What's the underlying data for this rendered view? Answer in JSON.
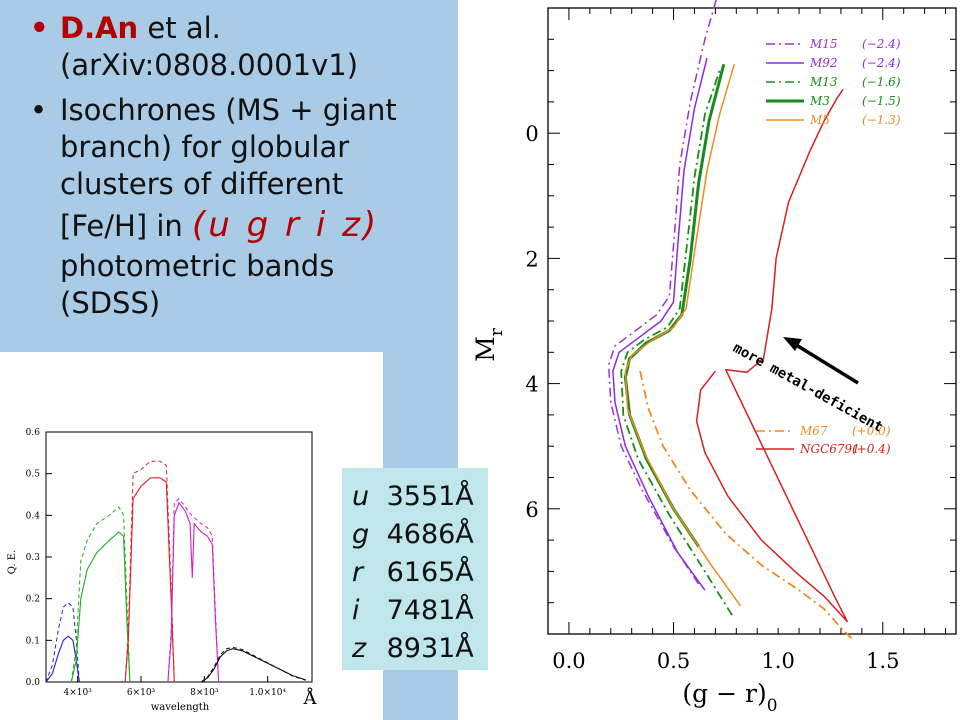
{
  "slide": {
    "bullet1_author": "D.An",
    "bullet1_rest": " et al.",
    "bullet1_ref": "(arXiv:0808.0001v1)",
    "bullet2_lines": [
      "Isochrones (MS + giant",
      "branch) for globular",
      "clusters of different"
    ],
    "bullet2_fe": "[Fe/H] in ",
    "bullet2_bands": "u g r i z",
    "bullet2_tail_lines": [
      "photometric bands",
      "(SDSS)"
    ],
    "bullet_glyph": "•"
  },
  "bands": [
    {
      "band": "u",
      "wavelength": "3551Å"
    },
    {
      "band": "g",
      "wavelength": "4686Å"
    },
    {
      "band": "r",
      "wavelength": "6165Å"
    },
    {
      "band": "i",
      "wavelength": "7481Å"
    },
    {
      "band": "z",
      "wavelength": "8931Å"
    }
  ],
  "chart_data": [
    {
      "type": "line",
      "xlabel": "(g − r)",
      "xlabel_sub": "0",
      "ylabel": "M",
      "ylabel_sub": "r",
      "xlim": [
        -0.1,
        1.85
      ],
      "ylim": [
        8.0,
        -2.0
      ],
      "x_ticks": [
        "0.0",
        "0.5",
        "1.0",
        "1.5"
      ],
      "y_ticks": [
        "0",
        "2",
        "4",
        "6"
      ],
      "annotation": "more metal-deficient",
      "legend_top": [
        {
          "name": "M15",
          "value": "(−2.4)",
          "color": "#9933cc",
          "dash": "dashdot"
        },
        {
          "name": "M92",
          "value": "(−2.4)",
          "color": "#8a2be2",
          "dash": "solid"
        },
        {
          "name": "M13",
          "value": "(−1.6)",
          "color": "#1a8a1a",
          "dash": "dashdot"
        },
        {
          "name": "M3",
          "value": "(−1.5)",
          "color": "#1a8a1a",
          "dash": "solid-thick"
        },
        {
          "name": "M5",
          "value": "(−1.3)",
          "color": "#f08a20",
          "dash": "solid"
        }
      ],
      "legend_bottom": [
        {
          "name": "M67",
          "value": "(+0.0)",
          "color": "#f08a20",
          "dash": "dashdot"
        },
        {
          "name": "NGC6791",
          "value": "(+0.4)",
          "color": "#d42020",
          "dash": "solid"
        }
      ],
      "series": [
        {
          "name": "M15",
          "color": "#9933cc",
          "dash": "dashdot",
          "width": 1.5,
          "points": [
            [
              0.62,
              7.2
            ],
            [
              0.5,
              6.6
            ],
            [
              0.35,
              5.7
            ],
            [
              0.25,
              5.0
            ],
            [
              0.2,
              4.3
            ],
            [
              0.19,
              3.7
            ],
            [
              0.22,
              3.4
            ],
            [
              0.3,
              3.2
            ],
            [
              0.42,
              2.9
            ],
            [
              0.48,
              2.6
            ],
            [
              0.5,
              1.8
            ],
            [
              0.53,
              0.5
            ],
            [
              0.58,
              -0.5
            ],
            [
              0.65,
              -1.5
            ],
            [
              0.71,
              -2.2
            ]
          ]
        },
        {
          "name": "M92",
          "color": "#8a2be2",
          "dash": "solid",
          "width": 1.5,
          "points": [
            [
              0.65,
              7.3
            ],
            [
              0.52,
              6.7
            ],
            [
              0.38,
              5.8
            ],
            [
              0.27,
              5.0
            ],
            [
              0.22,
              4.3
            ],
            [
              0.21,
              3.8
            ],
            [
              0.24,
              3.5
            ],
            [
              0.32,
              3.3
            ],
            [
              0.44,
              3.0
            ],
            [
              0.5,
              2.7
            ],
            [
              0.52,
              1.8
            ],
            [
              0.55,
              0.6
            ],
            [
              0.6,
              -0.4
            ],
            [
              0.66,
              -1.2
            ]
          ]
        },
        {
          "name": "M13",
          "color": "#1a8a1a",
          "dash": "dashdot",
          "width": 1.8,
          "points": [
            [
              0.78,
              7.7
            ],
            [
              0.65,
              7.0
            ],
            [
              0.48,
              6.1
            ],
            [
              0.33,
              5.2
            ],
            [
              0.26,
              4.5
            ],
            [
              0.25,
              3.8
            ],
            [
              0.28,
              3.5
            ],
            [
              0.36,
              3.3
            ],
            [
              0.47,
              3.1
            ],
            [
              0.53,
              2.8
            ],
            [
              0.56,
              1.9
            ],
            [
              0.6,
              0.7
            ],
            [
              0.65,
              -0.3
            ],
            [
              0.72,
              -1.0
            ]
          ]
        },
        {
          "name": "M3",
          "color": "#1a8a1a",
          "dash": "solid",
          "width": 3,
          "points": [
            [
              0.62,
              6.6
            ],
            [
              0.5,
              6.0
            ],
            [
              0.37,
              5.2
            ],
            [
              0.29,
              4.5
            ],
            [
              0.27,
              3.9
            ],
            [
              0.29,
              3.6
            ],
            [
              0.37,
              3.35
            ],
            [
              0.48,
              3.15
            ],
            [
              0.54,
              2.9
            ],
            [
              0.58,
              2.0
            ],
            [
              0.62,
              0.8
            ],
            [
              0.67,
              -0.2
            ],
            [
              0.74,
              -1.1
            ]
          ]
        },
        {
          "name": "M5",
          "color": "#f08a20",
          "dash": "solid",
          "width": 1.5,
          "points": [
            [
              0.82,
              7.55
            ],
            [
              0.68,
              6.9
            ],
            [
              0.5,
              6.0
            ],
            [
              0.36,
              5.1
            ],
            [
              0.28,
              4.4
            ],
            [
              0.27,
              3.8
            ],
            [
              0.3,
              3.55
            ],
            [
              0.4,
              3.3
            ],
            [
              0.5,
              3.1
            ],
            [
              0.56,
              2.8
            ],
            [
              0.6,
              1.9
            ],
            [
              0.66,
              0.6
            ],
            [
              0.72,
              -0.3
            ],
            [
              0.79,
              -1.1
            ]
          ]
        },
        {
          "name": "M67",
          "color": "#f08a20",
          "dash": "dashdot",
          "width": 1.8,
          "points": [
            [
              0.34,
              3.8
            ],
            [
              0.38,
              4.4
            ],
            [
              0.45,
              5.0
            ],
            [
              0.58,
              5.7
            ],
            [
              0.75,
              6.4
            ],
            [
              0.92,
              6.9
            ],
            [
              1.1,
              7.3
            ],
            [
              1.22,
              7.6
            ],
            [
              1.3,
              7.9
            ],
            [
              1.36,
              8.1
            ]
          ]
        },
        {
          "name": "NGC6791",
          "color": "#d42020",
          "dash": "solid",
          "width": 1.5,
          "points": [
            [
              0.7,
              3.8
            ],
            [
              0.63,
              4.1
            ],
            [
              0.61,
              4.6
            ],
            [
              0.65,
              5.1
            ],
            [
              0.76,
              5.8
            ],
            [
              0.92,
              6.5
            ],
            [
              1.08,
              7.0
            ],
            [
              1.22,
              7.4
            ],
            [
              1.33,
              7.8
            ],
            [
              1.27,
              7.4
            ],
            [
              0.75,
              3.78
            ],
            [
              0.85,
              3.82
            ],
            [
              0.93,
              3.6
            ],
            [
              0.97,
              2.8
            ],
            [
              0.99,
              2.0
            ],
            [
              1.05,
              1.1
            ],
            [
              1.15,
              0.3
            ],
            [
              1.22,
              -0.2
            ],
            [
              1.28,
              -0.55
            ],
            [
              1.31,
              -0.7
            ]
          ]
        }
      ]
    },
    {
      "type": "line",
      "xlabel": "wavelength",
      "ylabel": "Q. E.",
      "xlim": [
        3000,
        11400
      ],
      "ylim": [
        0,
        0.6
      ],
      "x_ticks": [
        "4×10³",
        "6×10³",
        "8×10³",
        "1.0×10⁴"
      ],
      "y_ticks": [
        "0.0",
        "0.1",
        "0.2",
        "0.3",
        "0.4",
        "0.5",
        "0.6"
      ],
      "corner_label": "Å",
      "series": [
        {
          "name": "u",
          "color": "#2222cc",
          "solid": [
            [
              3000,
              0
            ],
            [
              3200,
              0.02
            ],
            [
              3400,
              0.07
            ],
            [
              3550,
              0.1
            ],
            [
              3700,
              0.11
            ],
            [
              3850,
              0.1
            ],
            [
              3960,
              0.05
            ],
            [
              4050,
              0.0
            ]
          ],
          "dashed": [
            [
              3000,
              0
            ],
            [
              3200,
              0.04
            ],
            [
              3400,
              0.13
            ],
            [
              3550,
              0.18
            ],
            [
              3700,
              0.19
            ],
            [
              3850,
              0.18
            ],
            [
              3960,
              0.1
            ],
            [
              4050,
              0.0
            ]
          ]
        },
        {
          "name": "g",
          "color": "#22aa22",
          "solid": [
            [
              3800,
              0
            ],
            [
              3950,
              0.05
            ],
            [
              4100,
              0.2
            ],
            [
              4300,
              0.27
            ],
            [
              4600,
              0.31
            ],
            [
              5000,
              0.34
            ],
            [
              5300,
              0.36
            ],
            [
              5450,
              0.35
            ],
            [
              5550,
              0.15
            ],
            [
              5650,
              0.0
            ]
          ],
          "dashed": [
            [
              3800,
              0
            ],
            [
              3950,
              0.08
            ],
            [
              4100,
              0.29
            ],
            [
              4300,
              0.34
            ],
            [
              4600,
              0.38
            ],
            [
              5000,
              0.4
            ],
            [
              5300,
              0.42
            ],
            [
              5450,
              0.4
            ],
            [
              5550,
              0.2
            ],
            [
              5650,
              0.0
            ]
          ]
        },
        {
          "name": "r",
          "color": "#dd2222",
          "solid": [
            [
              5500,
              0
            ],
            [
              5600,
              0.1
            ],
            [
              5750,
              0.44
            ],
            [
              6000,
              0.47
            ],
            [
              6300,
              0.49
            ],
            [
              6600,
              0.49
            ],
            [
              6800,
              0.48
            ],
            [
              6950,
              0.2
            ],
            [
              7050,
              0.0
            ]
          ],
          "dashed": [
            [
              5500,
              0
            ],
            [
              5600,
              0.12
            ],
            [
              5750,
              0.5
            ],
            [
              6000,
              0.51
            ],
            [
              6300,
              0.53
            ],
            [
              6600,
              0.53
            ],
            [
              6800,
              0.52
            ],
            [
              6950,
              0.23
            ],
            [
              7050,
              0.0
            ]
          ]
        },
        {
          "name": "i",
          "color": "#cc22cc",
          "solid": [
            [
              6850,
              0
            ],
            [
              6950,
              0.1
            ],
            [
              7050,
              0.4
            ],
            [
              7200,
              0.43
            ],
            [
              7400,
              0.41
            ],
            [
              7550,
              0.38
            ],
            [
              7620,
              0.25
            ],
            [
              7680,
              0.38
            ],
            [
              7900,
              0.36
            ],
            [
              8100,
              0.35
            ],
            [
              8250,
              0.33
            ],
            [
              8350,
              0.15
            ],
            [
              8450,
              0.0
            ]
          ],
          "dashed": [
            [
              6850,
              0
            ],
            [
              6950,
              0.12
            ],
            [
              7050,
              0.43
            ],
            [
              7200,
              0.44
            ],
            [
              7400,
              0.42
            ],
            [
              7600,
              0.4
            ],
            [
              7900,
              0.38
            ],
            [
              8100,
              0.37
            ],
            [
              8250,
              0.35
            ],
            [
              8350,
              0.17
            ],
            [
              8450,
              0.0
            ]
          ]
        },
        {
          "name": "z",
          "color": "#111111",
          "solid": [
            [
              7900,
              0
            ],
            [
              8100,
              0.01
            ],
            [
              8300,
              0.03
            ],
            [
              8500,
              0.06
            ],
            [
              8700,
              0.075
            ],
            [
              8900,
              0.08
            ],
            [
              9200,
              0.075
            ],
            [
              9600,
              0.06
            ],
            [
              10000,
              0.045
            ],
            [
              10400,
              0.03
            ],
            [
              10800,
              0.015
            ],
            [
              11200,
              0.005
            ]
          ],
          "dashed": [
            [
              7900,
              0
            ],
            [
              8100,
              0.012
            ],
            [
              8300,
              0.035
            ],
            [
              8500,
              0.065
            ],
            [
              8700,
              0.08
            ],
            [
              8900,
              0.083
            ],
            [
              9200,
              0.078
            ],
            [
              9600,
              0.062
            ],
            [
              10000,
              0.046
            ],
            [
              10400,
              0.03
            ],
            [
              10800,
              0.014
            ],
            [
              11200,
              0.004
            ]
          ]
        }
      ]
    }
  ]
}
